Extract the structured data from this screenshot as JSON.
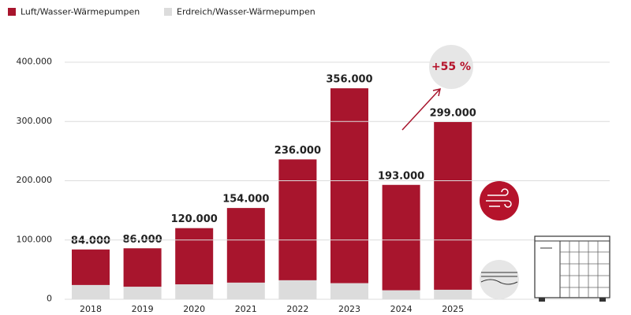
{
  "chart_data": {
    "type": "stacked-bar",
    "categories": [
      "2018",
      "2019",
      "2020",
      "2021",
      "2022",
      "2023",
      "2024",
      "2025"
    ],
    "series": [
      {
        "name": "Luft/Wasser-Wärmepumpen",
        "color": "#a8152d",
        "values": [
          60000,
          65000,
          95000,
          126000,
          204000,
          329000,
          178000,
          283000
        ]
      },
      {
        "name": "Erdreich/Wasser-Wärmepumpen",
        "color": "#dcdcdc",
        "values": [
          24000,
          21000,
          25000,
          28000,
          32000,
          27000,
          15000,
          16000
        ]
      }
    ],
    "totals": [
      84000,
      86000,
      120000,
      154000,
      236000,
      356000,
      193000,
      299000
    ],
    "value_labels": [
      "84.000",
      "86.000",
      "120.000",
      "154.000",
      "236.000",
      "356.000",
      "193.000",
      "299.000"
    ],
    "ylim": [
      0,
      400000
    ],
    "yticks": [
      0,
      {
        "value": 100000,
        "label": "100.000"
      },
      {
        "value": 200000,
        "label": "200.000"
      },
      {
        "value": 300000,
        "label": "300.000"
      },
      {
        "value": 400000,
        "label": "400.000"
      }
    ],
    "grid": true,
    "annotation": "+55 %"
  }
}
